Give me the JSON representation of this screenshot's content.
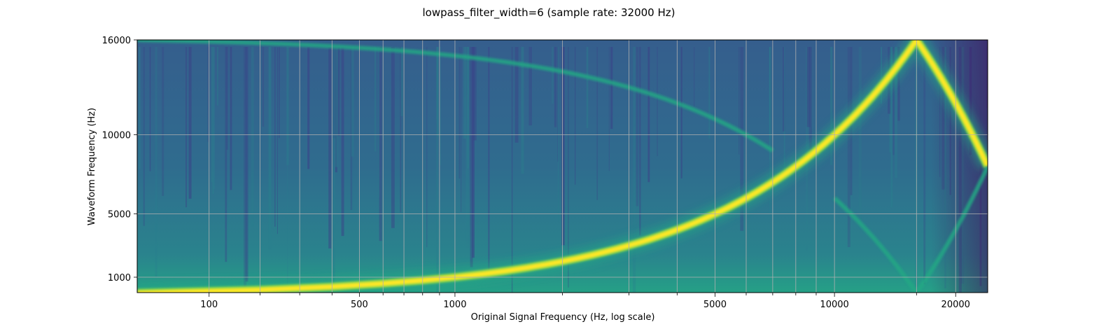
{
  "chart_data": {
    "type": "heatmap",
    "title": "lowpass_filter_width=6 (sample rate: 32000 Hz)",
    "xlabel": "Original Signal Frequency (Hz, log scale)",
    "ylabel": "Waveform Frequency (Hz)",
    "xlim": [
      0,
      24000
    ],
    "ylim": [
      0,
      16000
    ],
    "x_ticks": [
      100,
      500,
      1000,
      5000,
      10000,
      20000
    ],
    "x_minor_ticks": [
      200,
      300,
      400,
      600,
      700,
      800,
      900,
      2000,
      3000,
      4000,
      6000,
      7000,
      8000,
      9000,
      16000
    ],
    "y_ticks": [
      1000,
      5000,
      10000,
      16000
    ],
    "grid": true,
    "colormap": "viridis",
    "colors": {
      "low": "#440154",
      "background": "#31688e",
      "mid": "#21918c",
      "high": "#fde725"
    },
    "ridges": [
      {
        "points": [
          [
            0,
            0
          ],
          [
            16000,
            16000
          ],
          [
            24000,
            8000
          ]
        ],
        "intensity": "high"
      },
      {
        "points": [
          [
            0,
            16000
          ],
          [
            7000,
            9000
          ]
        ],
        "intensity": "mid"
      },
      {
        "points": [
          [
            10000,
            6000
          ],
          [
            16000,
            0
          ],
          [
            24000,
            8000
          ]
        ],
        "intensity": "mid"
      }
    ]
  }
}
